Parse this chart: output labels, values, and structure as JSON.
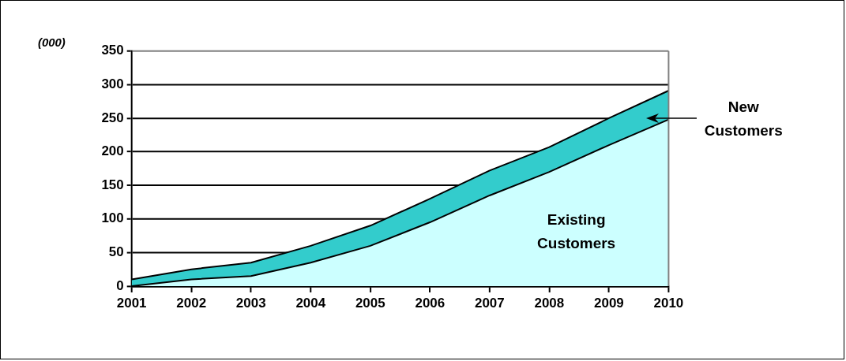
{
  "chart_data": {
    "type": "area",
    "stacked": true,
    "ylabel": "(000)",
    "categories": [
      "2001",
      "2002",
      "2003",
      "2004",
      "2005",
      "2006",
      "2007",
      "2008",
      "2009",
      "2010"
    ],
    "series": [
      {
        "name": "Existing Customers",
        "color": "#ccffff",
        "values": [
          0,
          10,
          15,
          35,
          60,
          95,
          135,
          170,
          210,
          248
        ]
      },
      {
        "name": "New Customers",
        "color": "#33cccc",
        "values": [
          10,
          15,
          20,
          25,
          30,
          35,
          37,
          37,
          40,
          43
        ]
      }
    ],
    "ylim": [
      0,
      350
    ],
    "yticks": [
      0,
      50,
      100,
      150,
      200,
      250,
      300,
      350
    ],
    "grid": "y",
    "legend": false
  }
}
